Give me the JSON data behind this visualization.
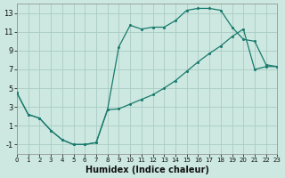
{
  "xlabel": "Humidex (Indice chaleur)",
  "bg_color": "#cce8e0",
  "grid_color": "#aaccc4",
  "line_color": "#1a7a6e",
  "line1_x": [
    0,
    1,
    2,
    3,
    4,
    5,
    6,
    7,
    8,
    9,
    10,
    11,
    12,
    13,
    14,
    15,
    16,
    17,
    18,
    19,
    20,
    21,
    22,
    23
  ],
  "line1_y": [
    4.5,
    2.2,
    1.8,
    0.5,
    -0.5,
    -1.0,
    -1.0,
    -0.8,
    2.7,
    9.4,
    11.7,
    11.3,
    11.5,
    11.5,
    12.2,
    13.3,
    13.5,
    13.5,
    13.3,
    11.5,
    10.2,
    10.0,
    7.5,
    7.3
  ],
  "line2_x": [
    0,
    1,
    2,
    3,
    4,
    5,
    6,
    7,
    8,
    9,
    10,
    11,
    12,
    13,
    14,
    15,
    16,
    17,
    18,
    19,
    20,
    21,
    22,
    23
  ],
  "line2_y": [
    4.5,
    2.2,
    1.8,
    0.5,
    -0.5,
    -1.0,
    -1.0,
    -0.8,
    2.7,
    2.8,
    3.3,
    3.8,
    4.3,
    5.0,
    5.8,
    6.8,
    7.8,
    8.7,
    9.5,
    10.5,
    11.3,
    7.0,
    7.3,
    7.3
  ],
  "xlim": [
    0,
    23
  ],
  "ylim": [
    -2,
    14
  ],
  "yticks": [
    -1,
    1,
    3,
    5,
    7,
    9,
    11,
    13
  ],
  "xticks": [
    0,
    1,
    2,
    3,
    4,
    5,
    6,
    7,
    8,
    9,
    10,
    11,
    12,
    13,
    14,
    15,
    16,
    17,
    18,
    19,
    20,
    21,
    22,
    23
  ]
}
